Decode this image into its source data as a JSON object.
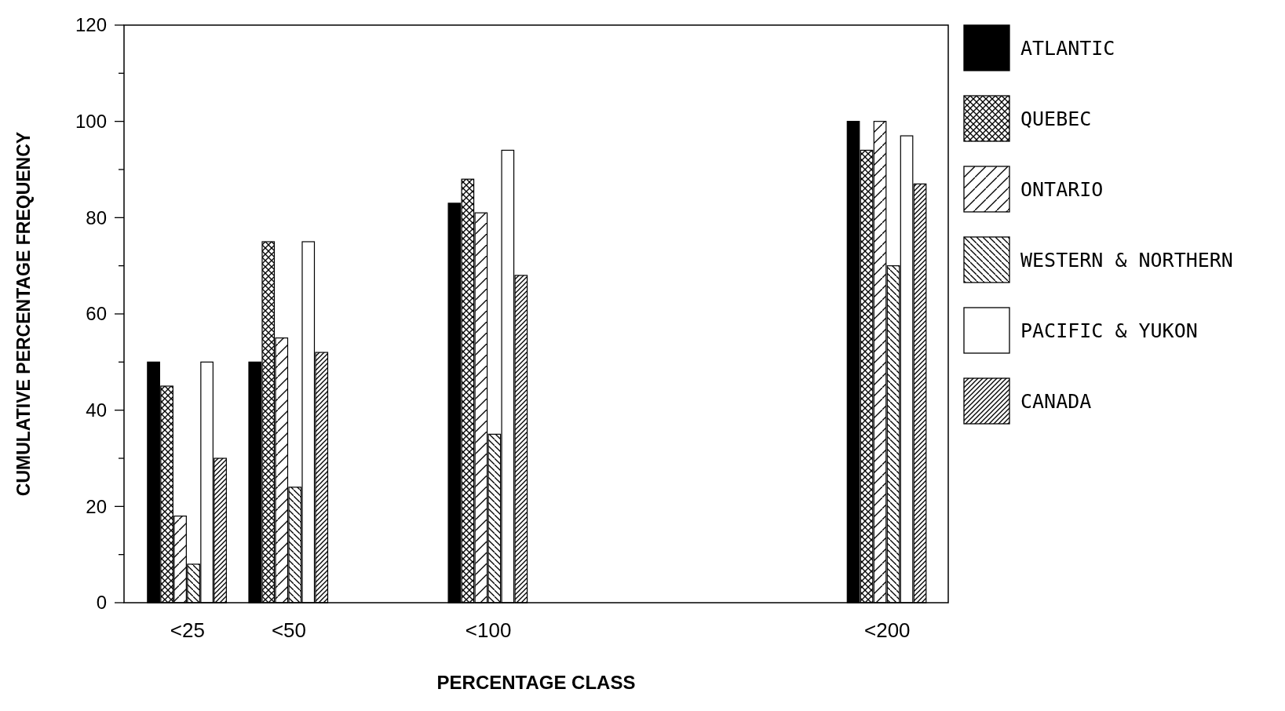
{
  "chart_data": {
    "type": "bar",
    "xlabel": "PERCENTAGE CLASS",
    "ylabel": "CUMULATIVE PERCENTAGE FREQUENCY",
    "categories": [
      "<25",
      "<50",
      "<100",
      "<200"
    ],
    "ylim": [
      0,
      120
    ],
    "yticks": [
      0,
      {
        "value": 10,
        "label": null
      },
      20,
      {
        "value": 30,
        "label": null
      },
      40,
      {
        "value": 50,
        "label": null
      },
      60,
      {
        "value": 70,
        "label": null
      },
      80,
      {
        "value": 90,
        "label": null
      },
      100,
      {
        "value": 110,
        "label": null
      },
      120
    ],
    "legend": "right",
    "grid": false,
    "series": [
      {
        "name": "ATLANTIC",
        "color": "#000000",
        "values": [
          50,
          50,
          83,
          100
        ]
      },
      {
        "name": "QUEBEC",
        "color": "#000000",
        "values": [
          45,
          75,
          88,
          94
        ]
      },
      {
        "name": "ONTARIO",
        "color": "#000000",
        "values": [
          18,
          55,
          81,
          100
        ]
      },
      {
        "name": "WESTERN & NORTHERN",
        "color": "#000000",
        "values": [
          8,
          24,
          35,
          70
        ]
      },
      {
        "name": "PACIFIC & YUKON",
        "color": "#000000",
        "values": [
          50,
          75,
          94,
          97
        ]
      },
      {
        "name": "CANADA",
        "color": "#000000",
        "values": [
          30,
          52,
          68,
          87
        ]
      }
    ]
  }
}
